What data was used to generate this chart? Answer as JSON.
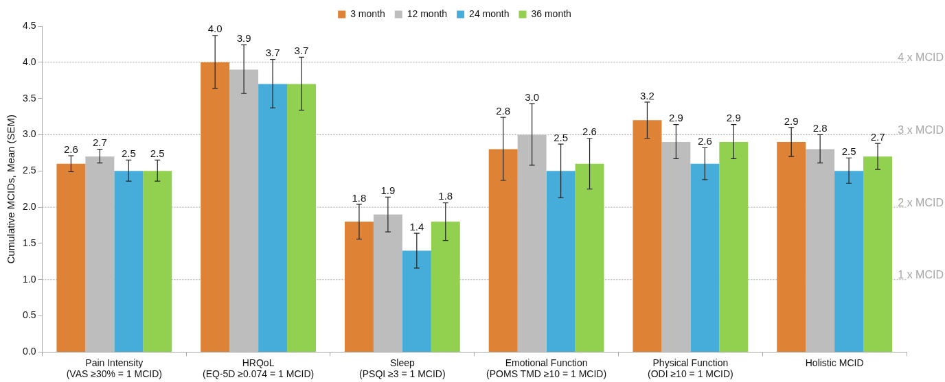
{
  "chart_data": {
    "type": "bar",
    "ylabel": "Cumulative MCIDs, Mean (SEM)",
    "categories": [
      "Pain Intensity\n(VAS ≥30% = 1 MCID)",
      "HRQoL\n(EQ-5D ≥0.074 = 1 MCID)",
      "Sleep\n(PSQI ≥3 = 1 MCID)",
      "Emotional Function\n(POMS TMD ≥10 = 1 MCID)",
      "Physical Function\n(ODI ≥10 = 1 MCID)",
      "Holistic MCID"
    ],
    "series": [
      {
        "name": "3 month",
        "color": "#de8236",
        "values": [
          2.6,
          4.0,
          1.8,
          2.8,
          3.2,
          2.9
        ],
        "value_labels": [
          "2.6",
          "4.0",
          "1.8",
          "2.8",
          "3.2",
          "2.9"
        ],
        "errors": [
          [
            2.49,
            2.71
          ],
          [
            3.64,
            4.37
          ],
          [
            1.56,
            2.04
          ],
          [
            2.37,
            3.24
          ],
          [
            2.95,
            3.45
          ],
          [
            2.7,
            3.1
          ]
        ]
      },
      {
        "name": "12 month",
        "color": "#bdbdbd",
        "values": [
          2.7,
          3.9,
          1.9,
          3.0,
          2.9,
          2.8
        ],
        "value_labels": [
          "2.7",
          "3.9",
          "1.9",
          "3.0",
          "2.9",
          "2.8"
        ],
        "errors": [
          [
            2.61,
            2.8
          ],
          [
            3.57,
            4.24
          ],
          [
            1.66,
            2.14
          ],
          [
            2.58,
            3.43
          ],
          [
            2.67,
            3.14
          ],
          [
            2.61,
            3.0
          ]
        ]
      },
      {
        "name": "24 month",
        "color": "#46acd9",
        "values": [
          2.5,
          3.7,
          1.4,
          2.5,
          2.6,
          2.5
        ],
        "value_labels": [
          "2.5",
          "3.7",
          "1.4",
          "2.5",
          "2.6",
          "2.5"
        ],
        "errors": [
          [
            2.36,
            2.65
          ],
          [
            3.37,
            4.04
          ],
          [
            1.16,
            1.64
          ],
          [
            2.13,
            2.87
          ],
          [
            2.38,
            2.82
          ],
          [
            2.33,
            2.68
          ]
        ]
      },
      {
        "name": "36 month",
        "color": "#92d050",
        "values": [
          2.5,
          3.7,
          1.8,
          2.6,
          2.9,
          2.7
        ],
        "value_labels": [
          "2.5",
          "3.7",
          "1.8",
          "2.6",
          "2.9",
          "2.7"
        ],
        "errors": [
          [
            2.36,
            2.65
          ],
          [
            3.34,
            4.07
          ],
          [
            1.54,
            2.06
          ],
          [
            2.25,
            2.95
          ],
          [
            2.67,
            3.14
          ],
          [
            2.52,
            2.88
          ]
        ]
      }
    ],
    "ylim": [
      0,
      4.5
    ],
    "yticks": [
      {
        "value": 0,
        "label": "0.0"
      },
      {
        "value": 0.5,
        "label": "0.5"
      },
      {
        "value": 1,
        "label": "1.0"
      },
      {
        "value": 1.5,
        "label": "1.5"
      },
      {
        "value": 2,
        "label": "2.0"
      },
      {
        "value": 2.5,
        "label": "2.5"
      },
      {
        "value": 3,
        "label": "3.0"
      },
      {
        "value": 3.5,
        "label": "3.5"
      },
      {
        "value": 4,
        "label": "4.0"
      },
      {
        "value": 4.5,
        "label": "4.5"
      }
    ],
    "ref_lines": [
      {
        "axis": "y",
        "value": 1,
        "label": "1 x MCID",
        "color": "#a6a6a6",
        "line_style": "dotted"
      },
      {
        "axis": "y",
        "value": 2,
        "label": "2 x MCID",
        "color": "#a6a6a6",
        "line_style": "dotted"
      },
      {
        "axis": "y",
        "value": 3,
        "label": "3 x MCID",
        "color": "#a6a6a6",
        "line_style": "dotted"
      },
      {
        "axis": "y",
        "value": 4,
        "label": "4 x MCID",
        "color": "#a6a6a6",
        "line_style": "dotted"
      }
    ],
    "grid": false,
    "legend": "top"
  }
}
